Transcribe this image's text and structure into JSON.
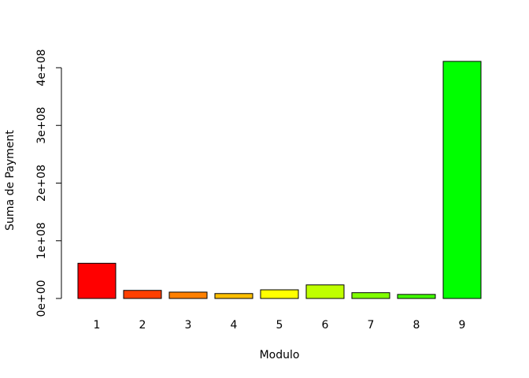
{
  "chart_data": {
    "type": "bar",
    "title": "",
    "xlabel": "Modulo",
    "ylabel": "Suma de Payment",
    "categories": [
      "1",
      "2",
      "3",
      "4",
      "5",
      "6",
      "7",
      "8",
      "9"
    ],
    "values": [
      61000000,
      14000000,
      11000000,
      8500000,
      15000000,
      23500000,
      10000000,
      7000000,
      411000000
    ],
    "colors": [
      "#ff0000",
      "#ff4000",
      "#ff8000",
      "#ffbf00",
      "#ffff00",
      "#bfff00",
      "#80ff00",
      "#40ff00",
      "#00ff00"
    ],
    "ylim": [
      0,
      400000000
    ],
    "yticks": [
      0,
      100000000,
      200000000,
      300000000,
      400000000
    ],
    "ytick_labels": [
      "0e+00",
      "1e+08",
      "2e+08",
      "3e+08",
      "4e+08"
    ],
    "grid": false,
    "legend": "none"
  }
}
